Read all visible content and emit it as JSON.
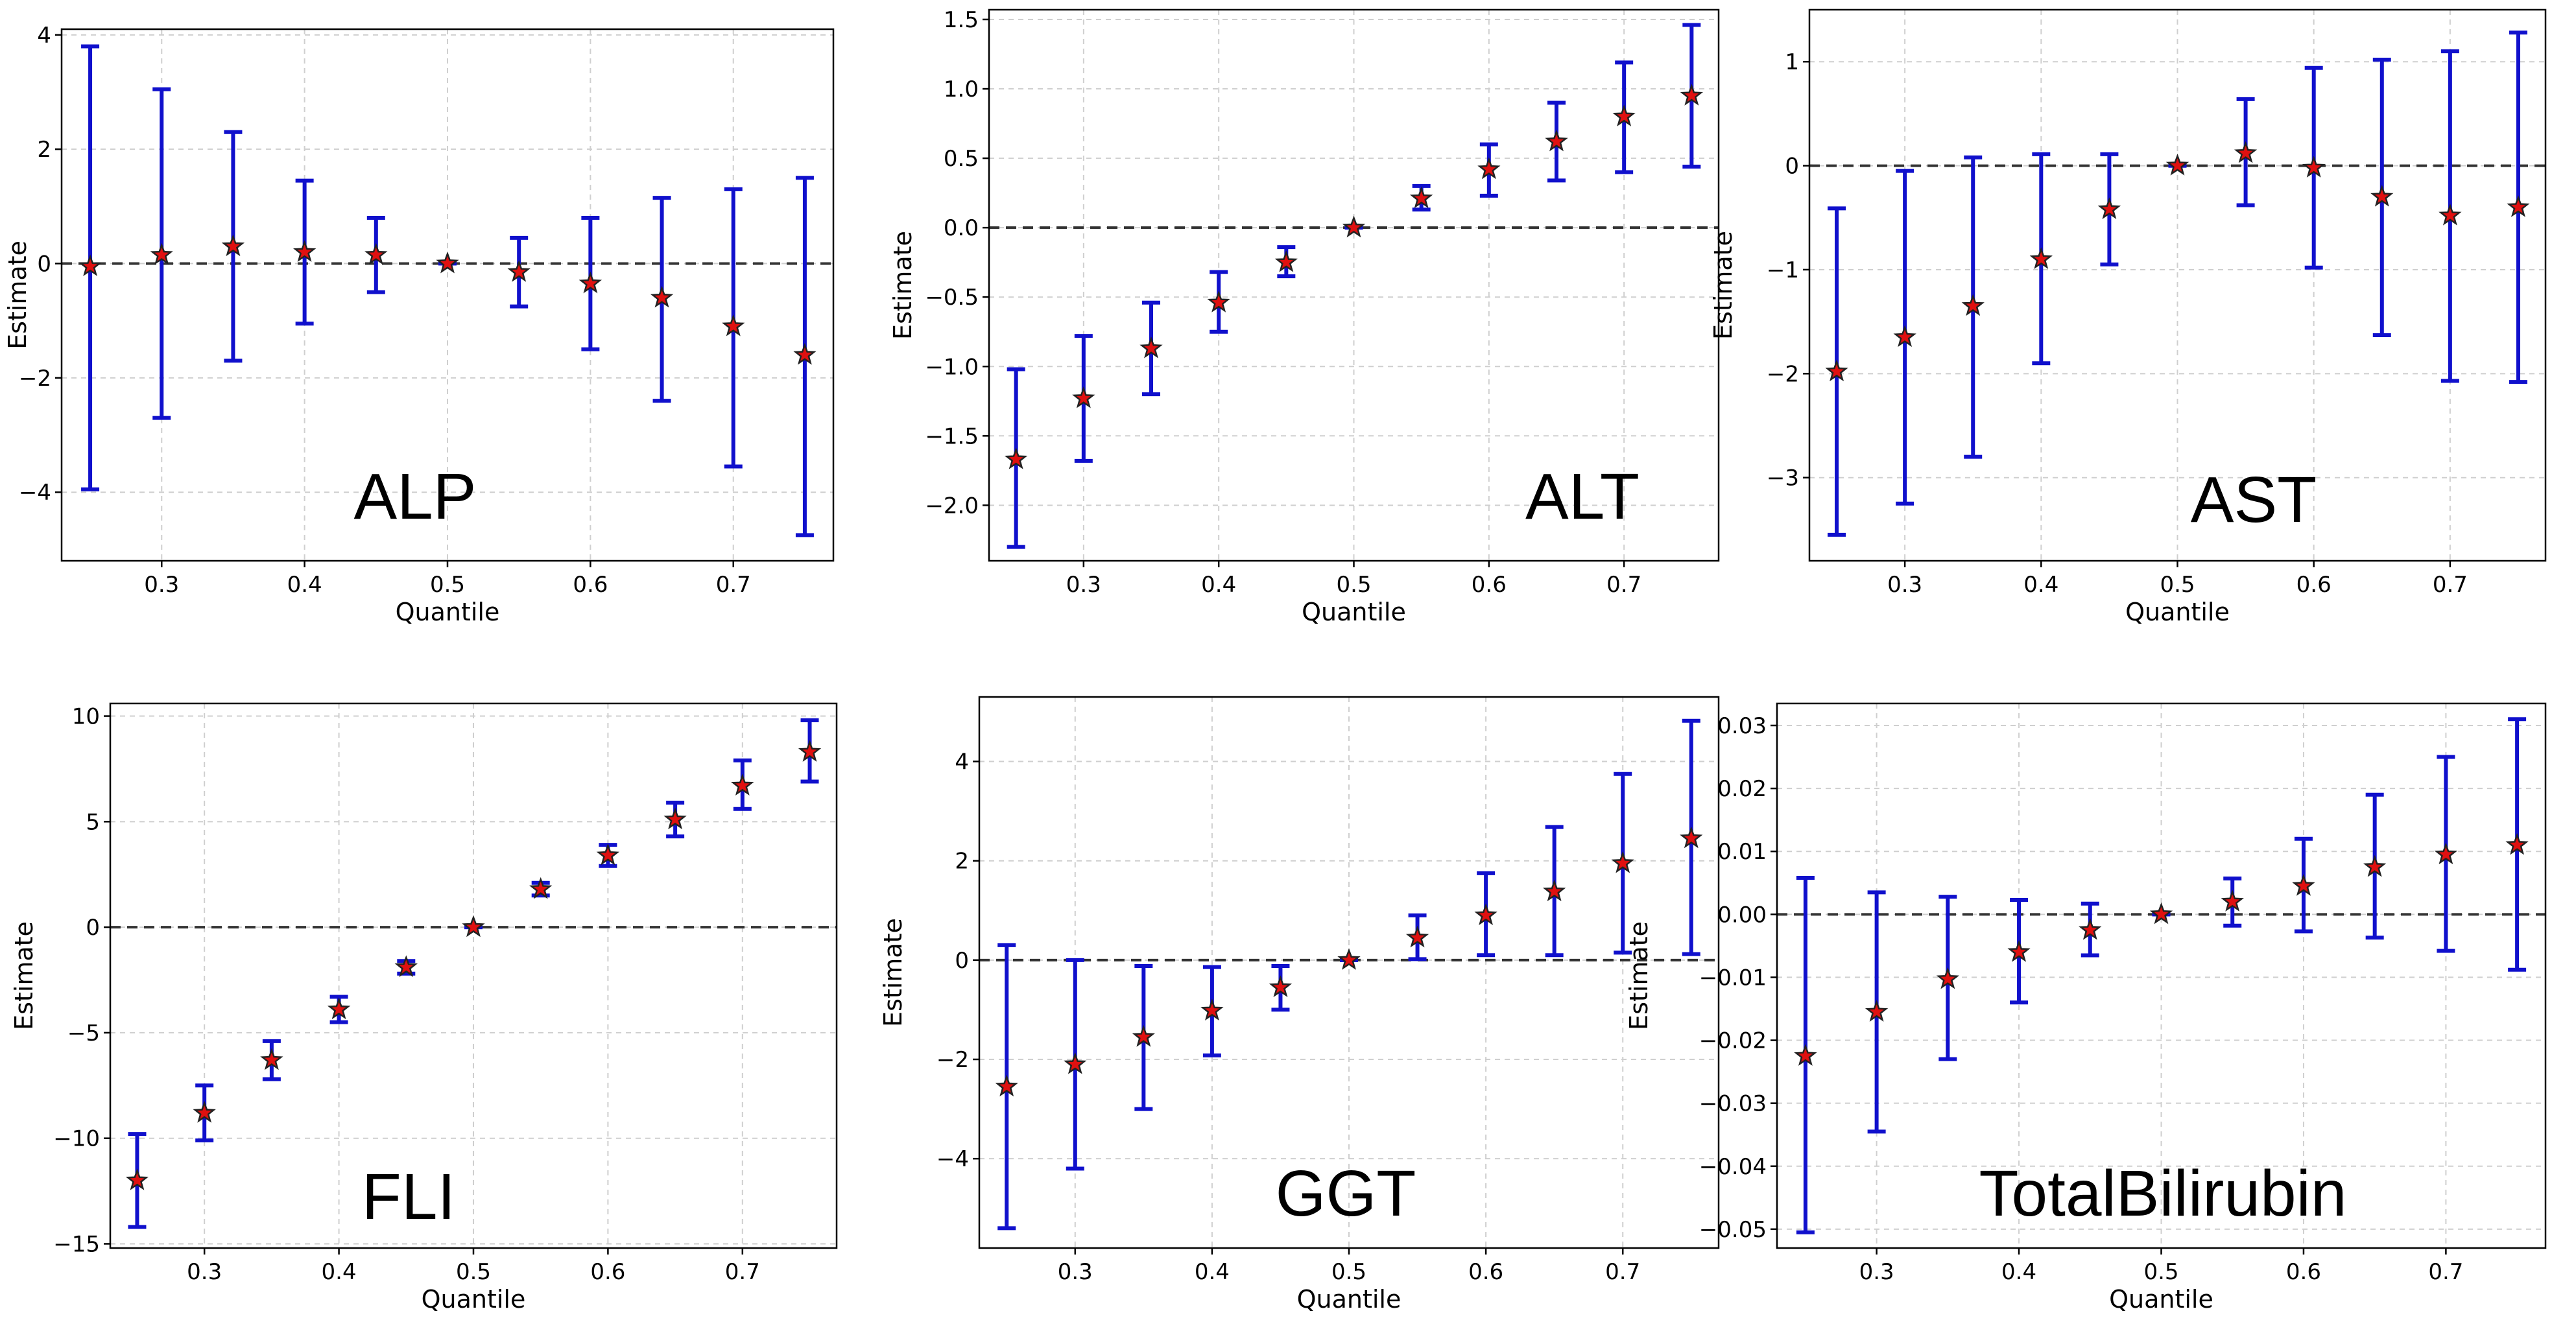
{
  "colors": {
    "errorbar": "#1010cc",
    "marker": "#e01010",
    "marker_edge": "#222222",
    "zero_line": "#333333"
  },
  "chart_data": [
    {
      "type": "errorbar",
      "title": "ALP",
      "xlabel": "Quantile",
      "ylabel": "Estimate",
      "xlim": [
        0.23,
        0.77
      ],
      "ylim": [
        -5.2,
        4.1
      ],
      "xticks": [
        0.3,
        0.4,
        0.5,
        0.6,
        0.7
      ],
      "yticks": [
        -4,
        -2,
        0,
        2,
        4
      ],
      "x": [
        0.25,
        0.3,
        0.35,
        0.4,
        0.45,
        0.5,
        0.55,
        0.6,
        0.65,
        0.7,
        0.75
      ],
      "estimate": [
        -0.05,
        0.15,
        0.3,
        0.2,
        0.15,
        0.0,
        -0.15,
        -0.35,
        -0.6,
        -1.1,
        -1.6
      ],
      "lower": [
        -3.95,
        -2.7,
        -1.7,
        -1.05,
        -0.5,
        0.0,
        -0.75,
        -1.5,
        -2.4,
        -3.55,
        -4.75
      ],
      "upper": [
        3.8,
        3.05,
        2.3,
        1.45,
        0.8,
        0.0,
        0.45,
        0.8,
        1.15,
        1.3,
        1.5
      ]
    },
    {
      "type": "errorbar",
      "title": "ALT",
      "xlabel": "Quantile",
      "ylabel": "Estimate",
      "xlim": [
        0.23,
        0.77
      ],
      "ylim": [
        -2.4,
        1.57
      ],
      "xticks": [
        0.3,
        0.4,
        0.5,
        0.6,
        0.7
      ],
      "yticks": [
        -2.0,
        -1.5,
        -1.0,
        -0.5,
        0.0,
        0.5,
        1.0,
        1.5
      ],
      "x": [
        0.25,
        0.3,
        0.35,
        0.4,
        0.45,
        0.5,
        0.55,
        0.6,
        0.65,
        0.7,
        0.75
      ],
      "estimate": [
        -1.67,
        -1.23,
        -0.87,
        -0.54,
        -0.25,
        0.0,
        0.21,
        0.42,
        0.62,
        0.8,
        0.95
      ],
      "lower": [
        -2.3,
        -1.68,
        -1.2,
        -0.75,
        -0.35,
        0.0,
        0.13,
        0.23,
        0.34,
        0.4,
        0.44
      ],
      "upper": [
        -1.02,
        -0.78,
        -0.54,
        -0.32,
        -0.14,
        0.0,
        0.3,
        0.6,
        0.9,
        1.19,
        1.46
      ]
    },
    {
      "type": "errorbar",
      "title": "AST",
      "xlabel": "Quantile",
      "ylabel": "Estimate",
      "xlim": [
        0.23,
        0.77
      ],
      "ylim": [
        -3.8,
        1.5
      ],
      "xticks": [
        0.3,
        0.4,
        0.5,
        0.6,
        0.7
      ],
      "yticks": [
        -3,
        -2,
        -1,
        0,
        1
      ],
      "x": [
        0.25,
        0.3,
        0.35,
        0.4,
        0.45,
        0.5,
        0.55,
        0.6,
        0.65,
        0.7,
        0.75
      ],
      "estimate": [
        -1.98,
        -1.65,
        -1.35,
        -0.9,
        -0.42,
        0.0,
        0.12,
        -0.02,
        -0.3,
        -0.48,
        -0.4
      ],
      "lower": [
        -3.55,
        -3.25,
        -2.8,
        -1.9,
        -0.95,
        0.0,
        -0.38,
        -0.98,
        -1.63,
        -2.07,
        -2.08
      ],
      "upper": [
        -0.41,
        -0.05,
        0.08,
        0.11,
        0.11,
        0.0,
        0.64,
        0.94,
        1.02,
        1.1,
        1.28
      ]
    },
    {
      "type": "errorbar",
      "title": "FLI",
      "xlabel": "Quantile",
      "ylabel": "Estimate",
      "xlim": [
        0.23,
        0.77
      ],
      "ylim": [
        -15.2,
        10.6
      ],
      "xticks": [
        0.3,
        0.4,
        0.5,
        0.6,
        0.7
      ],
      "yticks": [
        -15,
        -10,
        -5,
        0,
        5,
        10
      ],
      "x": [
        0.25,
        0.3,
        0.35,
        0.4,
        0.45,
        0.5,
        0.55,
        0.6,
        0.65,
        0.7,
        0.75
      ],
      "estimate": [
        -12.0,
        -8.8,
        -6.3,
        -3.9,
        -1.9,
        0.0,
        1.8,
        3.4,
        5.1,
        6.7,
        8.3
      ],
      "lower": [
        -14.2,
        -10.1,
        -7.2,
        -4.5,
        -2.2,
        0.0,
        1.5,
        2.9,
        4.3,
        5.6,
        6.9
      ],
      "upper": [
        -9.8,
        -7.5,
        -5.4,
        -3.3,
        -1.6,
        0.0,
        2.1,
        3.9,
        5.9,
        7.9,
        9.8
      ]
    },
    {
      "type": "errorbar",
      "title": "GGT",
      "xlabel": "Quantile",
      "ylabel": "Estimate",
      "xlim": [
        0.23,
        0.77
      ],
      "ylim": [
        -5.8,
        5.3
      ],
      "xticks": [
        0.3,
        0.4,
        0.5,
        0.6,
        0.7
      ],
      "yticks": [
        -4,
        -2,
        0,
        2,
        4
      ],
      "x": [
        0.25,
        0.3,
        0.35,
        0.4,
        0.45,
        0.5,
        0.55,
        0.6,
        0.65,
        0.7,
        0.75
      ],
      "estimate": [
        -2.55,
        -2.1,
        -1.55,
        -1.02,
        -0.55,
        0.0,
        0.45,
        0.9,
        1.38,
        1.95,
        2.45
      ],
      "lower": [
        -5.4,
        -4.2,
        -3.0,
        -1.92,
        -1.0,
        0.0,
        0.02,
        0.1,
        0.1,
        0.15,
        0.12
      ],
      "upper": [
        0.3,
        0.0,
        -0.12,
        -0.14,
        -0.12,
        0.0,
        0.9,
        1.75,
        2.68,
        3.75,
        4.82
      ]
    },
    {
      "type": "errorbar",
      "title": "TotalBilirubin",
      "xlabel": "Quantile",
      "ylabel": "Estimate",
      "xlim": [
        0.23,
        0.77
      ],
      "ylim": [
        -0.053,
        0.0335
      ],
      "xticks": [
        0.3,
        0.4,
        0.5,
        0.6,
        0.7
      ],
      "yticks": [
        -0.05,
        -0.04,
        -0.03,
        -0.02,
        -0.01,
        0.0,
        0.01,
        0.02,
        0.03
      ],
      "x": [
        0.25,
        0.3,
        0.35,
        0.4,
        0.45,
        0.5,
        0.55,
        0.6,
        0.65,
        0.7,
        0.75
      ],
      "estimate": [
        -0.0225,
        -0.0155,
        -0.0103,
        -0.006,
        -0.0025,
        0.0,
        0.002,
        0.0045,
        0.0075,
        0.0095,
        0.011
      ],
      "lower": [
        -0.0505,
        -0.0345,
        -0.023,
        -0.014,
        -0.0065,
        0.0,
        -0.0018,
        -0.0027,
        -0.0037,
        -0.0058,
        -0.0088
      ],
      "upper": [
        0.0058,
        0.0035,
        0.0028,
        0.0023,
        0.0017,
        0.0,
        0.0057,
        0.012,
        0.019,
        0.025,
        0.031
      ]
    }
  ]
}
